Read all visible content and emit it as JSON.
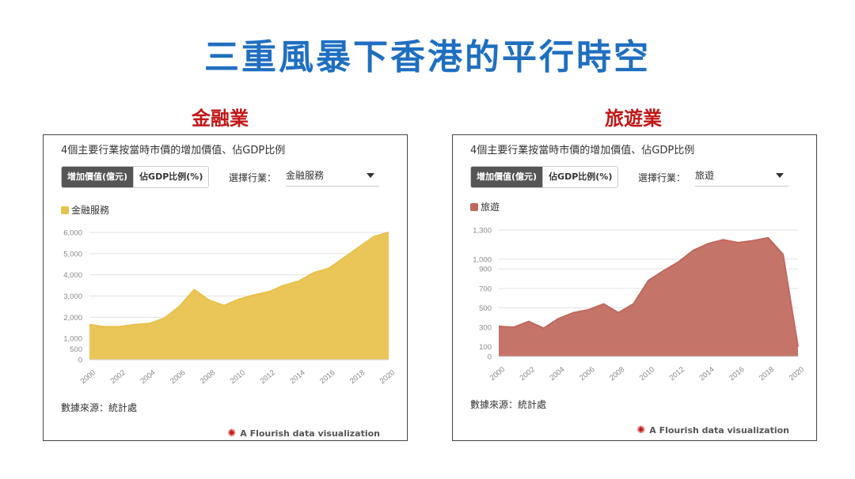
{
  "main_title": "三重風暴下香港的平行時空",
  "panels": [
    {
      "section_title": "金融業",
      "chart_title": "4個主要行業按當時市價的增加價值、佔GDP比例",
      "toggle_active": "增加價值(億元)",
      "toggle_inactive": "佔GDP比例(%)",
      "select_label": "選擇行業：",
      "select_value": "金融服務",
      "source": "數據來源：統計處",
      "credit": "A Flourish data visualization"
    },
    {
      "section_title": "旅遊業",
      "chart_title": "4個主要行業按當時市價的增加價值、佔GDP比例",
      "toggle_active": "增加價值(億元)",
      "toggle_inactive": "佔GDP比例(%)",
      "select_label": "選擇行業：",
      "select_value": "旅遊",
      "source": "數據來源：統計處",
      "credit": "A Flourish data visualization"
    }
  ],
  "chart_data": [
    {
      "type": "area",
      "series": [
        {
          "name": "金融服務",
          "color": "#e8c14a",
          "x": [
            2000,
            2001,
            2002,
            2003,
            2004,
            2005,
            2006,
            2007,
            2008,
            2009,
            2010,
            2011,
            2012,
            2013,
            2014,
            2015,
            2016,
            2017,
            2018,
            2019,
            2020
          ],
          "values": [
            1650,
            1550,
            1550,
            1650,
            1700,
            1950,
            2500,
            3300,
            2800,
            2550,
            2850,
            3050,
            3200,
            3500,
            3700,
            4100,
            4300,
            4800,
            5300,
            5800,
            6000
          ]
        }
      ],
      "x_ticks": [
        "2000",
        "2002",
        "2004",
        "2006",
        "2008",
        "2010",
        "2012",
        "2014",
        "2016",
        "2018",
        "2020"
      ],
      "y_ticks": [
        0,
        500,
        1000,
        2000,
        3000,
        4000,
        5000,
        6000
      ],
      "y_tick_labels": [
        "0",
        "500",
        "1,000",
        "2,000",
        "3,000",
        "4,000",
        "5,000",
        "6,000"
      ],
      "ylim": [
        0,
        6000
      ],
      "xlim": [
        2000,
        2020
      ],
      "grid": true,
      "legend_position": "top-left"
    },
    {
      "type": "area",
      "series": [
        {
          "name": "旅遊",
          "color": "#c0685c",
          "x": [
            2000,
            2001,
            2002,
            2003,
            2004,
            2005,
            2006,
            2007,
            2008,
            2009,
            2010,
            2011,
            2012,
            2013,
            2014,
            2015,
            2016,
            2017,
            2018,
            2019,
            2020
          ],
          "values": [
            310,
            300,
            360,
            290,
            390,
            450,
            480,
            540,
            450,
            540,
            780,
            880,
            970,
            1090,
            1160,
            1200,
            1170,
            1190,
            1220,
            1050,
            100
          ]
        }
      ],
      "x_ticks": [
        "2000",
        "2002",
        "2004",
        "2006",
        "2008",
        "2010",
        "2012",
        "2014",
        "2016",
        "2018",
        "2020"
      ],
      "y_ticks": [
        0,
        100,
        300,
        500,
        700,
        900,
        1000,
        1300
      ],
      "y_tick_labels": [
        "0",
        "100",
        "300",
        "500",
        "700",
        "900",
        "1,000",
        "1,300"
      ],
      "ylim": [
        0,
        1300
      ],
      "xlim": [
        2000,
        2020
      ],
      "grid": true,
      "legend_position": "top-left"
    }
  ]
}
